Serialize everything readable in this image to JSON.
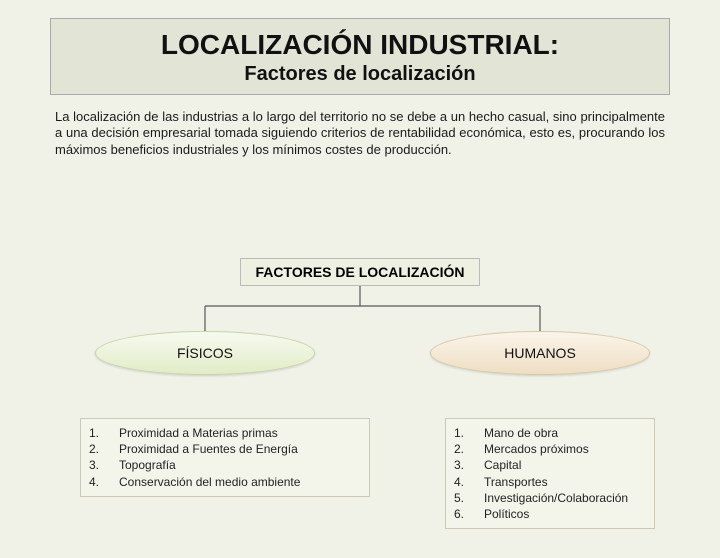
{
  "header": {
    "title": "LOCALIZACIÓN INDUSTRIAL:",
    "subtitle": "Factores de localización"
  },
  "paragraph": "La localización de las industrias a lo largo del territorio no se debe a un hecho casual, sino principalmente a una decisión empresarial tomada siguiendo criterios de rentabilidad económica, esto es, procurando los máximos beneficios industriales y los mínimos costes de producción.",
  "factors_label": "FACTORES DE LOCALIZACIÓN",
  "branches": {
    "left": {
      "label": "FÍSICOS",
      "items": [
        "Proximidad a Materias primas",
        "Proximidad a Fuentes de Energía",
        "Topografía",
        "Conservación del medio ambiente"
      ]
    },
    "right": {
      "label": "HUMANOS",
      "items": [
        "Mano de obra",
        "Mercados próximos",
        "Capital",
        "Transportes",
        "Investigación/Colaboración",
        "Políticos"
      ]
    }
  },
  "colors": {
    "page_bg": "#f0f2e8",
    "header_bg": "#e2e4d5",
    "ellipse_left_bg": "#e2ecc8",
    "ellipse_right_bg": "#eedfc3",
    "line": "#585858"
  },
  "line_style": {
    "stroke_width": 1.2
  }
}
